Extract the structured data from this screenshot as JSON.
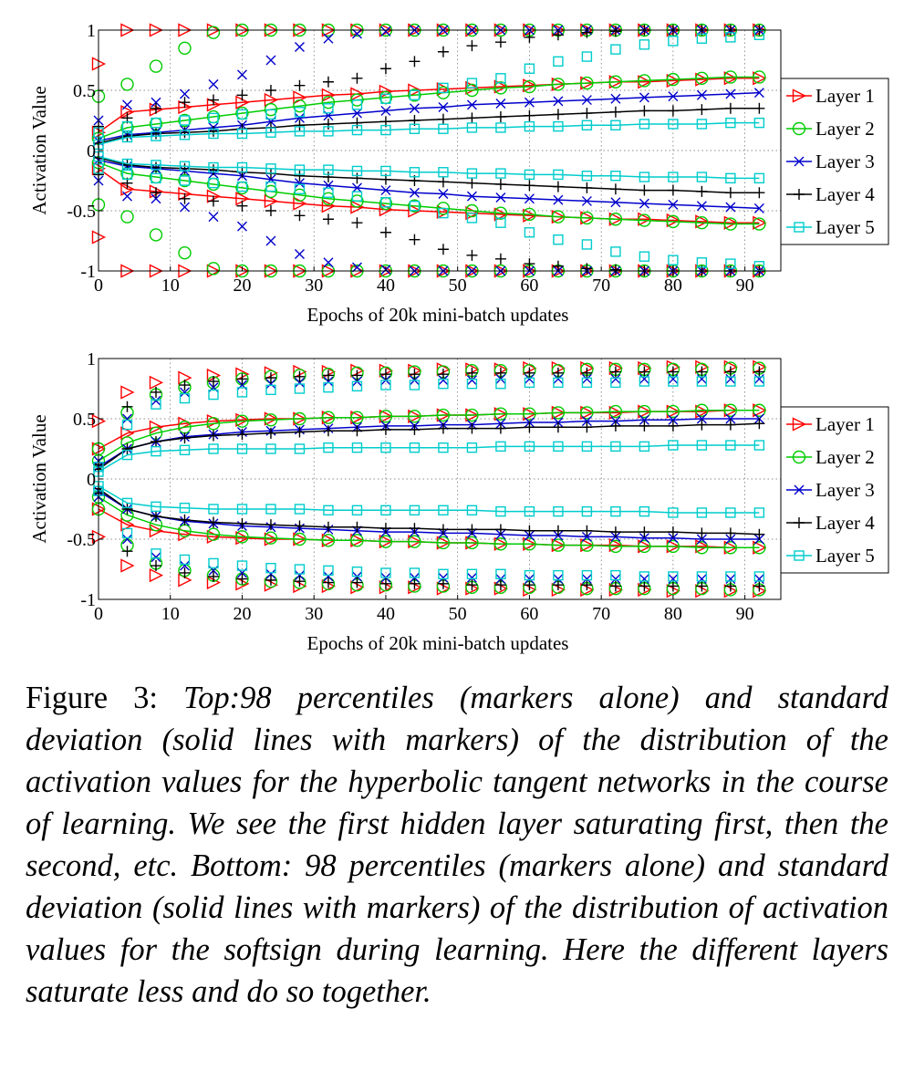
{
  "chart_data": [
    {
      "type": "line",
      "title": "",
      "xlabel": "Epochs of 20k mini-batch updates",
      "ylabel": "Activation Value",
      "xlim": [
        0,
        95
      ],
      "ylim": [
        -1,
        1
      ],
      "xticks": [
        0,
        10,
        20,
        30,
        40,
        50,
        60,
        70,
        80,
        90
      ],
      "yticks": [
        1,
        0.5,
        0,
        -0.5,
        -1
      ],
      "ytick_labels": [
        "1",
        "0.5",
        "0",
        "-0.5",
        "-1"
      ],
      "grid": true,
      "legend_position": "right",
      "x": [
        0,
        4,
        8,
        12,
        16,
        20,
        24,
        28,
        32,
        36,
        40,
        44,
        48,
        52,
        56,
        60,
        64,
        68,
        72,
        76,
        80,
        84,
        88,
        92
      ],
      "series": [
        {
          "name": "Layer 1",
          "color": "#ff0000",
          "marker": "triangle-right",
          "std": [
            0.15,
            0.32,
            0.34,
            0.36,
            0.38,
            0.4,
            0.42,
            0.44,
            0.46,
            0.47,
            0.49,
            0.5,
            0.51,
            0.52,
            0.53,
            0.54,
            0.55,
            0.56,
            0.57,
            0.57,
            0.58,
            0.59,
            0.6,
            0.6
          ],
          "p98": [
            0.72,
            1.0,
            1.0,
            1.0,
            1.0,
            1.0,
            1.0,
            1.0,
            1.0,
            1.0,
            1.0,
            1.0,
            1.0,
            1.0,
            1.0,
            1.0,
            1.0,
            1.0,
            1.0,
            1.0,
            1.0,
            1.0,
            1.0,
            1.0
          ]
        },
        {
          "name": "Layer 2",
          "color": "#00cc00",
          "marker": "circle",
          "std": [
            0.1,
            0.19,
            0.22,
            0.25,
            0.28,
            0.31,
            0.34,
            0.37,
            0.4,
            0.42,
            0.44,
            0.46,
            0.48,
            0.5,
            0.52,
            0.53,
            0.55,
            0.56,
            0.57,
            0.58,
            0.59,
            0.6,
            0.61,
            0.61
          ],
          "p98": [
            0.45,
            0.55,
            0.7,
            0.85,
            0.98,
            1.0,
            1.0,
            1.0,
            1.0,
            1.0,
            1.0,
            1.0,
            1.0,
            1.0,
            1.0,
            1.0,
            1.0,
            1.0,
            1.0,
            1.0,
            1.0,
            1.0,
            1.0,
            1.0
          ]
        },
        {
          "name": "Layer 3",
          "color": "#0000cc",
          "marker": "x",
          "std": [
            0.08,
            0.13,
            0.15,
            0.17,
            0.19,
            0.21,
            0.24,
            0.27,
            0.29,
            0.31,
            0.33,
            0.35,
            0.36,
            0.38,
            0.39,
            0.4,
            0.41,
            0.42,
            0.43,
            0.44,
            0.45,
            0.46,
            0.47,
            0.48
          ],
          "p98": [
            0.25,
            0.38,
            0.4,
            0.47,
            0.55,
            0.63,
            0.75,
            0.86,
            0.93,
            0.97,
            0.99,
            1.0,
            1.0,
            1.0,
            1.0,
            1.0,
            1.0,
            1.0,
            1.0,
            1.0,
            1.0,
            1.0,
            1.0,
            1.0
          ]
        },
        {
          "name": "Layer 4",
          "color": "#000000",
          "marker": "plus",
          "std": [
            0.06,
            0.12,
            0.14,
            0.15,
            0.16,
            0.18,
            0.19,
            0.21,
            0.22,
            0.23,
            0.24,
            0.25,
            0.26,
            0.27,
            0.28,
            0.29,
            0.3,
            0.31,
            0.32,
            0.33,
            0.33,
            0.34,
            0.35,
            0.35
          ],
          "p98": [
            0.2,
            0.27,
            0.35,
            0.4,
            0.42,
            0.46,
            0.5,
            0.54,
            0.57,
            0.6,
            0.68,
            0.74,
            0.82,
            0.87,
            0.9,
            0.94,
            0.96,
            0.98,
            0.99,
            1.0,
            1.0,
            1.0,
            1.0,
            1.0
          ]
        },
        {
          "name": "Layer 5",
          "color": "#00cccc",
          "marker": "square",
          "std": [
            0.05,
            0.11,
            0.12,
            0.13,
            0.14,
            0.14,
            0.15,
            0.16,
            0.16,
            0.17,
            0.17,
            0.18,
            0.18,
            0.19,
            0.19,
            0.2,
            0.2,
            0.21,
            0.21,
            0.22,
            0.22,
            0.22,
            0.23,
            0.23
          ],
          "p98": [
            0.15,
            0.2,
            0.23,
            0.25,
            0.27,
            0.3,
            0.3,
            0.32,
            0.35,
            0.38,
            0.43,
            0.46,
            0.52,
            0.56,
            0.6,
            0.68,
            0.74,
            0.78,
            0.84,
            0.88,
            0.91,
            0.93,
            0.94,
            0.96
          ]
        }
      ]
    },
    {
      "type": "line",
      "title": "",
      "xlabel": "Epochs of 20k mini-batch updates",
      "ylabel": "Activation Value",
      "xlim": [
        0,
        95
      ],
      "ylim": [
        -1,
        1
      ],
      "xticks": [
        0,
        10,
        20,
        30,
        40,
        50,
        60,
        70,
        80,
        90
      ],
      "yticks": [
        1,
        0.5,
        0,
        -0.5,
        -1
      ],
      "ytick_labels": [
        "1",
        "0.5",
        "0",
        "-0.5",
        "-1"
      ],
      "grid": true,
      "legend_position": "right",
      "x": [
        0,
        4,
        8,
        12,
        16,
        20,
        24,
        28,
        32,
        36,
        40,
        44,
        48,
        52,
        56,
        60,
        64,
        68,
        72,
        76,
        80,
        84,
        88,
        92
      ],
      "series": [
        {
          "name": "Layer 1",
          "color": "#ff0000",
          "marker": "triangle-right",
          "std": [
            0.25,
            0.38,
            0.43,
            0.46,
            0.48,
            0.49,
            0.5,
            0.5,
            0.51,
            0.51,
            0.52,
            0.52,
            0.53,
            0.53,
            0.54,
            0.54,
            0.55,
            0.55,
            0.55,
            0.56,
            0.56,
            0.56,
            0.57,
            0.57
          ],
          "p98": [
            0.48,
            0.72,
            0.8,
            0.84,
            0.86,
            0.87,
            0.88,
            0.89,
            0.89,
            0.9,
            0.9,
            0.9,
            0.91,
            0.91,
            0.91,
            0.92,
            0.92,
            0.92,
            0.92,
            0.92,
            0.93,
            0.93,
            0.93,
            0.93
          ]
        },
        {
          "name": "Layer 2",
          "color": "#00cc00",
          "marker": "circle",
          "std": [
            0.15,
            0.3,
            0.38,
            0.43,
            0.46,
            0.48,
            0.49,
            0.5,
            0.51,
            0.51,
            0.52,
            0.52,
            0.53,
            0.53,
            0.54,
            0.54,
            0.55,
            0.55,
            0.56,
            0.56,
            0.56,
            0.57,
            0.57,
            0.57
          ],
          "p98": [
            0.25,
            0.55,
            0.7,
            0.76,
            0.8,
            0.83,
            0.85,
            0.86,
            0.87,
            0.88,
            0.88,
            0.89,
            0.89,
            0.9,
            0.9,
            0.9,
            0.9,
            0.91,
            0.91,
            0.91,
            0.91,
            0.91,
            0.92,
            0.92
          ]
        },
        {
          "name": "Layer 3",
          "color": "#0000cc",
          "marker": "x",
          "std": [
            0.1,
            0.25,
            0.31,
            0.35,
            0.37,
            0.39,
            0.4,
            0.41,
            0.42,
            0.43,
            0.44,
            0.44,
            0.45,
            0.45,
            0.46,
            0.47,
            0.47,
            0.48,
            0.48,
            0.49,
            0.49,
            0.5,
            0.5,
            0.5
          ],
          "p98": [
            0.15,
            0.5,
            0.65,
            0.72,
            0.76,
            0.78,
            0.79,
            0.8,
            0.81,
            0.81,
            0.82,
            0.82,
            0.82,
            0.82,
            0.83,
            0.83,
            0.83,
            0.83,
            0.83,
            0.83,
            0.83,
            0.83,
            0.83,
            0.83
          ]
        },
        {
          "name": "Layer 4",
          "color": "#000000",
          "marker": "plus",
          "std": [
            0.08,
            0.25,
            0.31,
            0.34,
            0.36,
            0.37,
            0.38,
            0.39,
            0.4,
            0.4,
            0.41,
            0.41,
            0.42,
            0.42,
            0.42,
            0.43,
            0.43,
            0.43,
            0.44,
            0.44,
            0.44,
            0.45,
            0.45,
            0.46
          ],
          "p98": [
            0.12,
            0.6,
            0.72,
            0.78,
            0.81,
            0.83,
            0.84,
            0.85,
            0.86,
            0.86,
            0.87,
            0.87,
            0.87,
            0.88,
            0.88,
            0.88,
            0.88,
            0.88,
            0.89,
            0.89,
            0.89,
            0.89,
            0.89,
            0.89
          ]
        },
        {
          "name": "Layer 5",
          "color": "#00cccc",
          "marker": "square",
          "std": [
            0.06,
            0.2,
            0.23,
            0.24,
            0.25,
            0.25,
            0.25,
            0.25,
            0.26,
            0.26,
            0.26,
            0.26,
            0.26,
            0.26,
            0.27,
            0.27,
            0.27,
            0.27,
            0.27,
            0.27,
            0.28,
            0.28,
            0.28,
            0.28
          ],
          "p98": [
            0.1,
            0.45,
            0.62,
            0.67,
            0.7,
            0.72,
            0.74,
            0.75,
            0.76,
            0.77,
            0.78,
            0.78,
            0.79,
            0.79,
            0.79,
            0.8,
            0.8,
            0.8,
            0.8,
            0.81,
            0.81,
            0.81,
            0.81,
            0.81
          ]
        }
      ]
    }
  ],
  "caption": {
    "lead": "Figure 3: ",
    "body": "Top:98 percentiles (markers alone) and standard deviation (solid lines with markers) of the distribution of the activation values for the hyperbolic tangent networks in the course of learning. We see the first hidden layer saturating first, then the second, etc. Bottom: 98 percentiles (markers alone) and standard deviation (solid lines with markers) of the distribution of activation values for the softsign during learning. Here the different layers saturate less and do so together."
  }
}
